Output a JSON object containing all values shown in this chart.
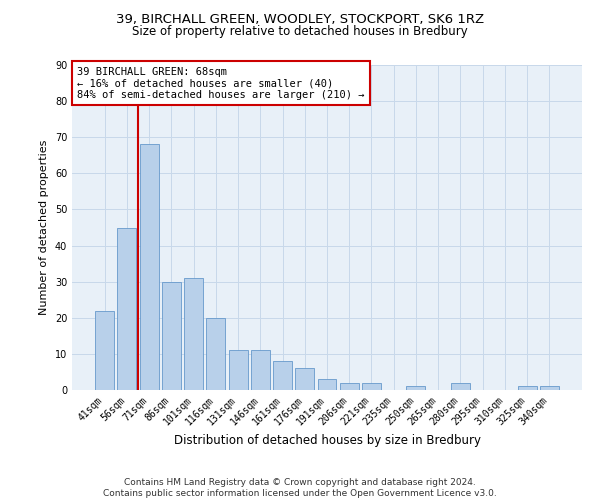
{
  "title_line1": "39, BIRCHALL GREEN, WOODLEY, STOCKPORT, SK6 1RZ",
  "title_line2": "Size of property relative to detached houses in Bredbury",
  "xlabel": "Distribution of detached houses by size in Bredbury",
  "ylabel": "Number of detached properties",
  "bar_labels": [
    "41sqm",
    "56sqm",
    "71sqm",
    "86sqm",
    "101sqm",
    "116sqm",
    "131sqm",
    "146sqm",
    "161sqm",
    "176sqm",
    "191sqm",
    "206sqm",
    "221sqm",
    "235sqm",
    "250sqm",
    "265sqm",
    "280sqm",
    "295sqm",
    "310sqm",
    "325sqm",
    "340sqm"
  ],
  "bar_values": [
    22,
    45,
    68,
    30,
    31,
    20,
    11,
    11,
    8,
    6,
    3,
    2,
    2,
    0,
    1,
    0,
    2,
    0,
    0,
    1,
    1
  ],
  "bar_color": "#b8d0ea",
  "bar_edge_color": "#6699cc",
  "grid_color": "#c8d8ea",
  "background_color": "#e8f0f8",
  "vline_x": 1.5,
  "vline_color": "#cc0000",
  "annotation_text": "39 BIRCHALL GREEN: 68sqm\n← 16% of detached houses are smaller (40)\n84% of semi-detached houses are larger (210) →",
  "annotation_box_color": "#ffffff",
  "annotation_box_edge": "#cc0000",
  "ylim": [
    0,
    90
  ],
  "yticks": [
    0,
    10,
    20,
    30,
    40,
    50,
    60,
    70,
    80,
    90
  ],
  "footer_text": "Contains HM Land Registry data © Crown copyright and database right 2024.\nContains public sector information licensed under the Open Government Licence v3.0.",
  "title_fontsize": 9.5,
  "subtitle_fontsize": 8.5,
  "tick_fontsize": 7,
  "ylabel_fontsize": 8,
  "xlabel_fontsize": 8.5,
  "annotation_fontsize": 7.5,
  "footer_fontsize": 6.5
}
